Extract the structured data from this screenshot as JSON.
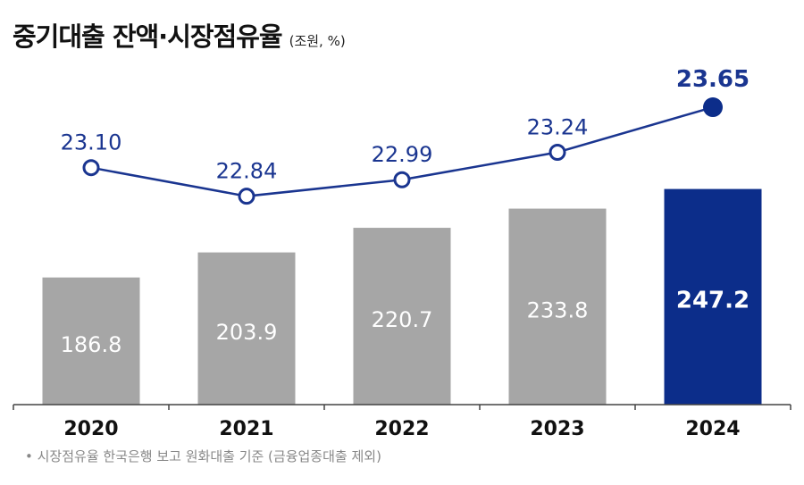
{
  "title": "중기대출 잔액·시장점유율",
  "unit": "(조원, %)",
  "footnote": "• 시장점유율 한국은행 보고 원화대출 기준 (금융업종대출 제외)",
  "colors": {
    "bar": "#a6a6a6",
    "bar_highlight": "#0c2d8a",
    "line": "#1a3590",
    "bar_label": "#ffffff",
    "line_label": "#1a3590"
  },
  "chart_data": {
    "type": "bar+line",
    "categories": [
      "2020",
      "2021",
      "2022",
      "2023",
      "2024"
    ],
    "series": [
      {
        "type": "bar",
        "values": [
          186.8,
          203.9,
          220.7,
          233.8,
          247.2
        ],
        "labels": [
          "186.8",
          "203.9",
          "220.7",
          "233.8",
          "247.2"
        ],
        "highlight_index": 4
      },
      {
        "type": "line",
        "values": [
          23.1,
          22.84,
          22.99,
          23.24,
          23.65
        ],
        "labels": [
          "23.10",
          "22.84",
          "22.99",
          "23.24",
          "23.65"
        ],
        "highlight_index": 4
      }
    ],
    "bar_ylim": [
      100,
      300
    ],
    "line_ylim": [
      22.0,
      24.0
    ],
    "grid": false,
    "legend": "none"
  }
}
